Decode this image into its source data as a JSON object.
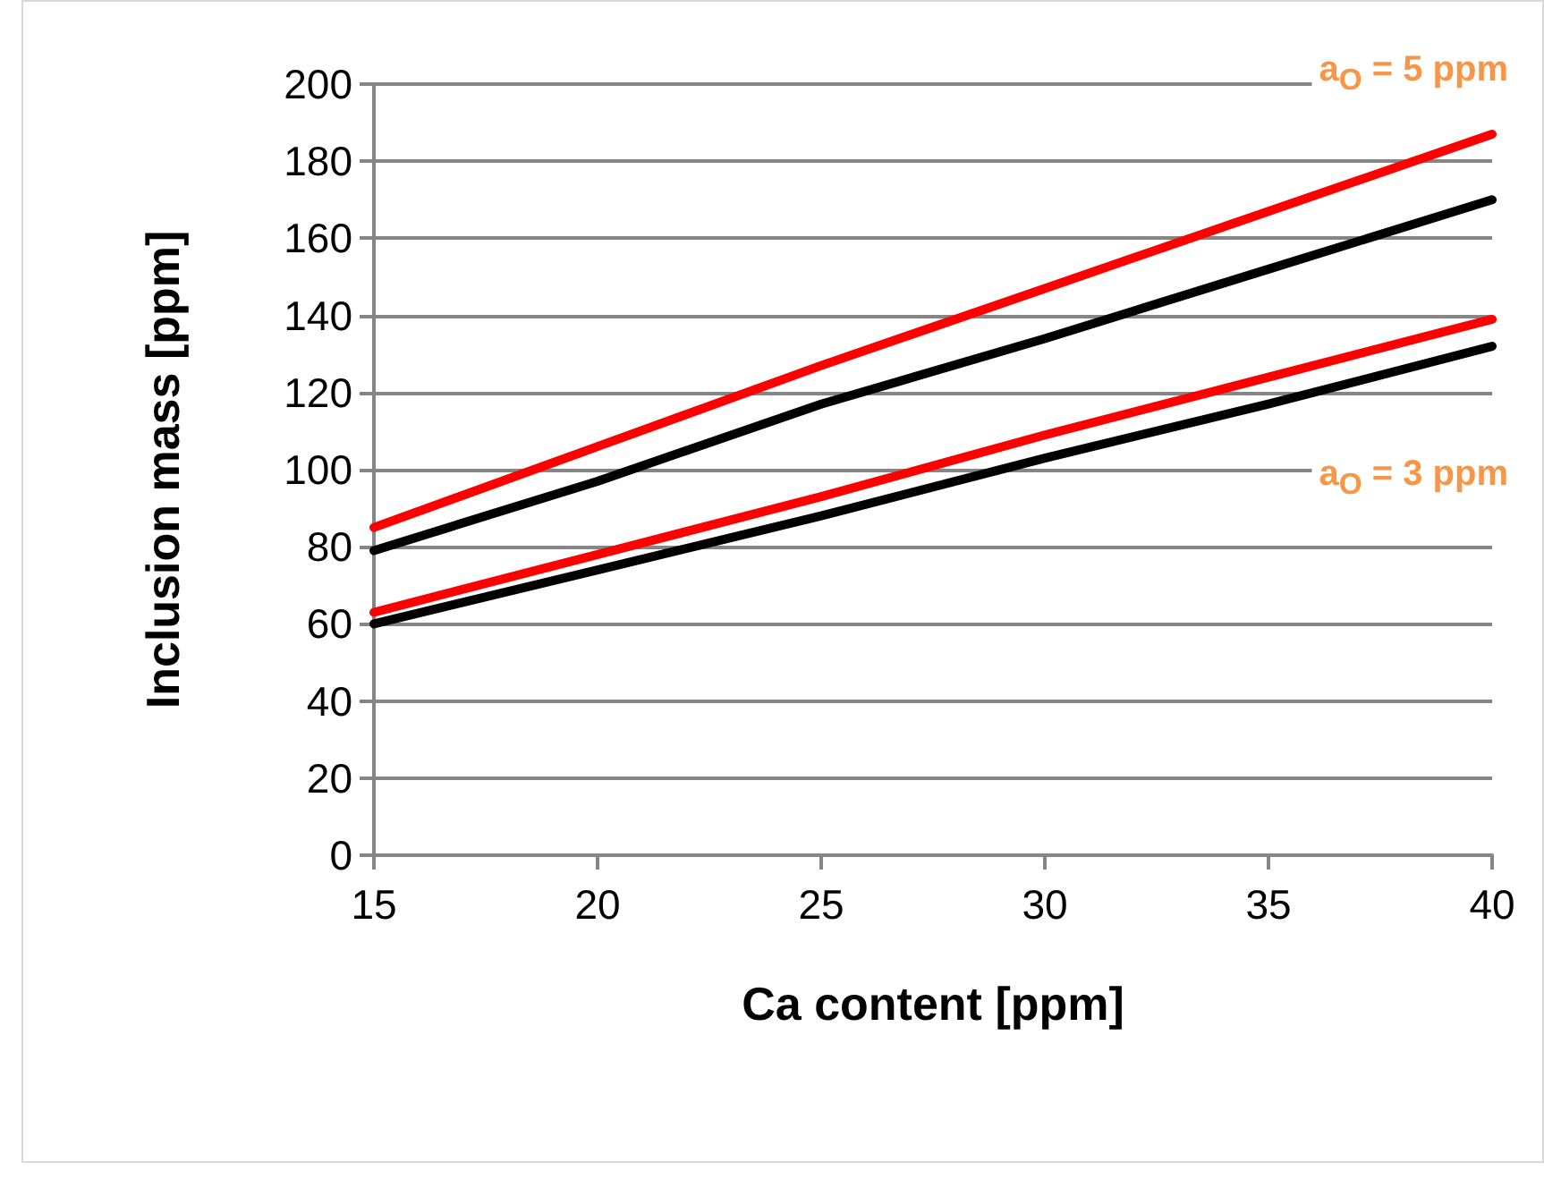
{
  "chart_data": {
    "type": "line",
    "xlabel": "Ca content [ppm]",
    "ylabel": "Inclusion mass [ppm]",
    "x": [
      15,
      20,
      25,
      30,
      35,
      40
    ],
    "series": [
      {
        "color": "#ff0000",
        "values": [
          85,
          106,
          127,
          147,
          167,
          187
        ]
      },
      {
        "color": "#000000",
        "values": [
          79,
          97,
          117,
          134,
          152,
          170
        ]
      },
      {
        "color": "#ff0000",
        "values": [
          63,
          78,
          93,
          109,
          124,
          139
        ]
      },
      {
        "color": "#000000",
        "values": [
          60,
          74,
          88,
          103,
          117,
          132
        ]
      }
    ],
    "annotations": [
      "a$_{O}$ = 5 ppm",
      "a$_{O}$ = 3 ppm"
    ],
    "xlim": [
      15,
      40
    ],
    "xticks": [
      15,
      20,
      25,
      30,
      35,
      40
    ],
    "ylim": [
      0,
      200
    ],
    "yticks": [
      0,
      20,
      40,
      60,
      80,
      100,
      120,
      140,
      160,
      180,
      200
    ],
    "grid": "y",
    "marker": "none",
    "line_style": "solid"
  }
}
